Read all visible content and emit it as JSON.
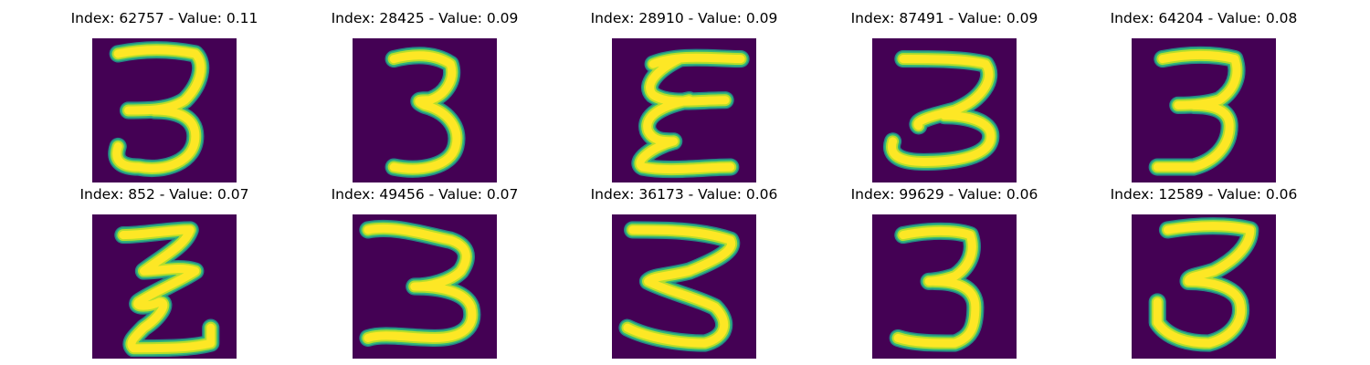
{
  "colors": {
    "background": "#440154",
    "stroke_core": "#fde725",
    "stroke_mid": "#b5de2b",
    "stroke_edge": "#35b779",
    "stroke_halo": "#21918c"
  },
  "panels": [
    {
      "title": "Index: 62757 - Value: 0.11",
      "index": 62757,
      "value": 0.11,
      "image_content": "handwritten-3"
    },
    {
      "title": "Index: 28425 - Value: 0.09",
      "index": 28425,
      "value": 0.09,
      "image_content": "handwritten-3"
    },
    {
      "title": "Index: 28910 - Value: 0.09",
      "index": 28910,
      "value": 0.09,
      "image_content": "handwritten-3"
    },
    {
      "title": "Index: 87491 - Value: 0.09",
      "index": 87491,
      "value": 0.09,
      "image_content": "handwritten-3"
    },
    {
      "title": "Index: 64204 - Value: 0.08",
      "index": 64204,
      "value": 0.08,
      "image_content": "handwritten-3"
    },
    {
      "title": "Index: 852 - Value: 0.07",
      "index": 852,
      "value": 0.07,
      "image_content": "handwritten-3"
    },
    {
      "title": "Index: 49456 - Value: 0.07",
      "index": 49456,
      "value": 0.07,
      "image_content": "handwritten-3"
    },
    {
      "title": "Index: 36173 - Value: 0.06",
      "index": 36173,
      "value": 0.06,
      "image_content": "handwritten-3"
    },
    {
      "title": "Index: 99629 - Value: 0.06",
      "index": 99629,
      "value": 0.06,
      "image_content": "handwritten-3"
    },
    {
      "title": "Index: 12589 - Value: 0.06",
      "index": 12589,
      "value": 0.06,
      "image_content": "handwritten-3"
    }
  ]
}
